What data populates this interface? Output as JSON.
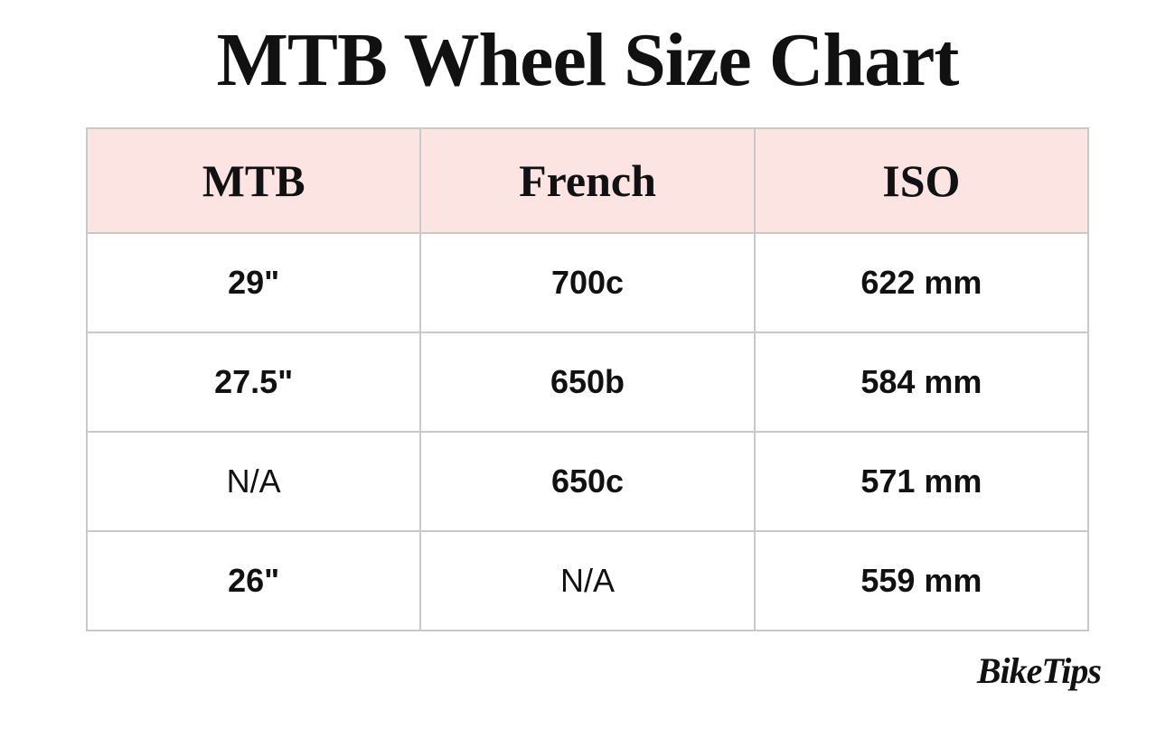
{
  "title": "MTB Wheel Size Chart",
  "brand": "BikeTips",
  "table": {
    "type": "table",
    "header_bg": "#fbe4e1",
    "border_color": "#c9c9c9",
    "text_color": "#111111",
    "title_fontsize_pt": 63,
    "header_fontsize_pt": 38,
    "cell_fontsize_pt": 27,
    "columns": [
      "MTB",
      "French",
      "ISO"
    ],
    "rows": [
      {
        "mtb": "29\"",
        "mtb_na": false,
        "french": "700c",
        "french_na": false,
        "iso": "622 mm"
      },
      {
        "mtb": "27.5\"",
        "mtb_na": false,
        "french": "650b",
        "french_na": false,
        "iso": "584 mm"
      },
      {
        "mtb": "N/A",
        "mtb_na": true,
        "french": "650c",
        "french_na": false,
        "iso": "571 mm"
      },
      {
        "mtb": "26\"",
        "mtb_na": false,
        "french": "N/A",
        "french_na": true,
        "iso": "559 mm"
      }
    ]
  }
}
